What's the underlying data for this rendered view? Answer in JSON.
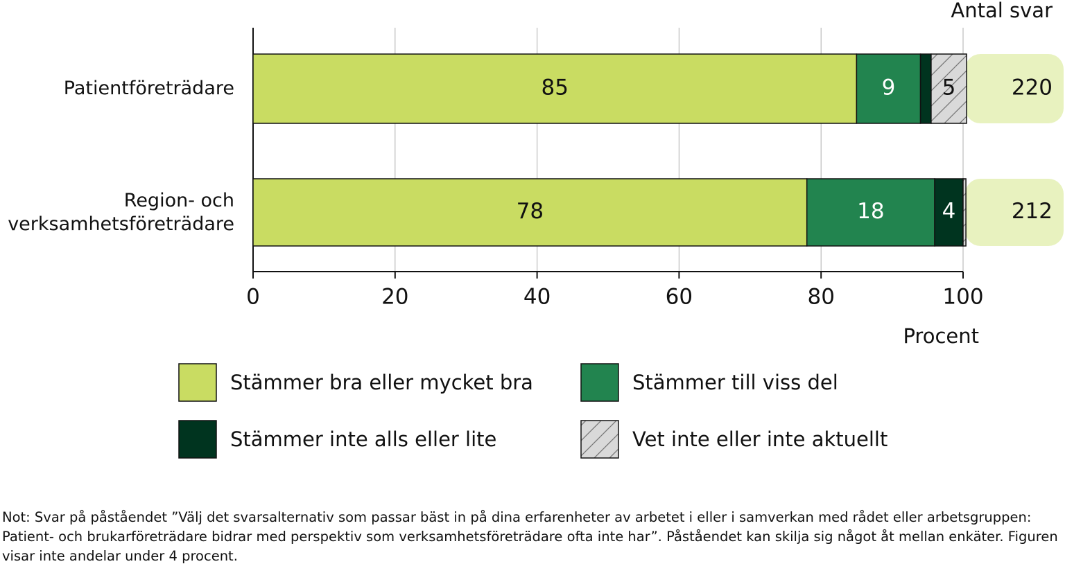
{
  "chart_data": {
    "type": "bar",
    "orientation": "horizontal",
    "stacked": true,
    "categories": [
      "Patientföreträdare",
      "Region- och verksamhetsföreträdare"
    ],
    "series": [
      {
        "name": "Stämmer bra eller mycket bra",
        "color": "#c9dc62",
        "values": [
          85,
          78
        ],
        "value_labels": [
          "85",
          "78"
        ]
      },
      {
        "name": "Stämmer till viss del",
        "color": "#22844f",
        "values": [
          9,
          18
        ],
        "value_labels": [
          "9",
          "18"
        ]
      },
      {
        "name": "Stämmer inte alls eller lite",
        "color": "#00341f",
        "values": [
          1.5,
          4
        ],
        "value_labels": [
          null,
          "4"
        ]
      },
      {
        "name": "Vet inte eller inte aktuellt",
        "color": "#d9d9d9",
        "hatch": true,
        "values": [
          5,
          0.4
        ],
        "value_labels": [
          "5",
          null
        ]
      }
    ],
    "xlim": [
      0,
      100
    ],
    "xticks": [
      0,
      20,
      40,
      60,
      80,
      100
    ],
    "xlabel": "Procent",
    "grid": true,
    "legend": "bottom",
    "extra_column": {
      "title": "Antal svar",
      "values": [
        220,
        212
      ],
      "color": "#e8f2bf"
    }
  },
  "note": "Not: Svar på påståendet ”Välj det svarsalternativ som passar bäst in på dina erfarenheter av arbetet i eller i samverkan med rådet eller arbetsgruppen: Patient- och brukarföreträdare bidrar med perspektiv som verksamhetsföreträdare ofta inte har”. Påståendet kan skilja sig något åt mellan enkäter. Figuren visar inte andelar under 4 procent."
}
